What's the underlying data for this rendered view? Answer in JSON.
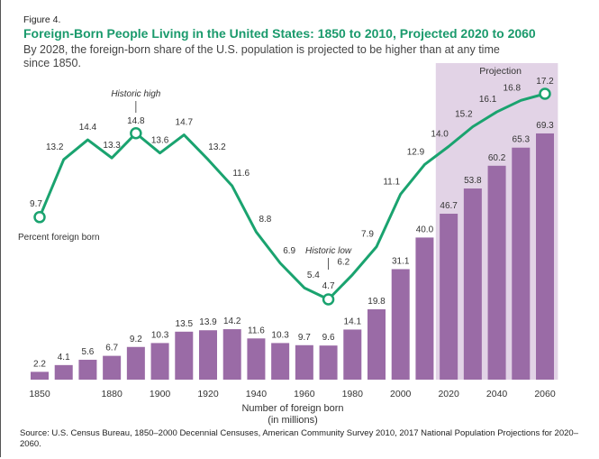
{
  "figure_label": "Figure 4.",
  "title": "Foreign-Born People Living in the United States: 1850 to 2010, Projected 2020 to 2060",
  "subtitle": "By 2028, the foreign-born share of the U.S. population is projected to be higher than at any time since 1850.",
  "source": "Source: U.S. Census Bureau, 1850–2000 Decennial Censuses, American Community Survey 2010, 2017 National Population Projections for 2020–2060.",
  "chart_data": {
    "type": "bar+line",
    "categories": [
      1850,
      1860,
      1870,
      1880,
      1890,
      1900,
      1910,
      1920,
      1930,
      1940,
      1950,
      1960,
      1970,
      1980,
      1990,
      2000,
      2010,
      2020,
      2030,
      2040,
      2050,
      2060
    ],
    "x_tick_labels": [
      "1850",
      "1880",
      "1900",
      "1920",
      "1940",
      "1960",
      "1980",
      "2000",
      "2020",
      "2040",
      "2060"
    ],
    "xlabel_line1": "Number of foreign born",
    "xlabel_line2": "(in millions)",
    "series": [
      {
        "name": "Number of foreign born (in millions)",
        "kind": "bar",
        "color": "#9a6ba6",
        "values": [
          2.2,
          4.1,
          5.6,
          6.7,
          9.2,
          10.3,
          13.5,
          13.9,
          14.2,
          11.6,
          10.3,
          9.7,
          9.6,
          14.1,
          19.8,
          31.1,
          40.0,
          46.7,
          53.8,
          60.2,
          65.3,
          69.3
        ],
        "labels": [
          "2.2",
          "4.1",
          "5.6",
          "6.7",
          "9.2",
          "10.3",
          "13.5",
          "13.9",
          "14.2",
          "11.6",
          "10.3",
          "9.7",
          "9.6",
          "14.1",
          "19.8",
          "31.1",
          "40.0",
          "46.7",
          "53.8",
          "60.2",
          "65.3",
          "69.3"
        ]
      },
      {
        "name": "Percent foreign born",
        "kind": "line",
        "color": "#1aa36f",
        "values": [
          9.7,
          13.2,
          14.4,
          13.3,
          14.8,
          13.6,
          14.7,
          13.2,
          11.6,
          8.8,
          6.9,
          5.4,
          4.7,
          6.2,
          7.9,
          11.1,
          12.9,
          14.0,
          15.2,
          16.1,
          16.8,
          17.2
        ],
        "labels": [
          "9.7",
          "13.2",
          "14.4",
          "13.3",
          "14.8",
          "13.6",
          "14.7",
          "13.2",
          "11.6",
          "8.8",
          "6.9",
          "5.4",
          "4.7",
          "6.2",
          "7.9",
          "11.1",
          "12.9",
          "14.0",
          "15.2",
          "16.1",
          "16.8",
          "17.2"
        ],
        "markers": [
          1850,
          1890,
          1970,
          2060
        ]
      }
    ],
    "projection": {
      "label": "Projection",
      "from": 2020,
      "to": 2060,
      "color": "#e2d3e6"
    },
    "annotations": [
      {
        "text": "Historic high",
        "year": 1890
      },
      {
        "text": "Historic low",
        "year": 1970
      }
    ],
    "line_label": "Percent foreign born",
    "grid": false,
    "legend": "none"
  }
}
